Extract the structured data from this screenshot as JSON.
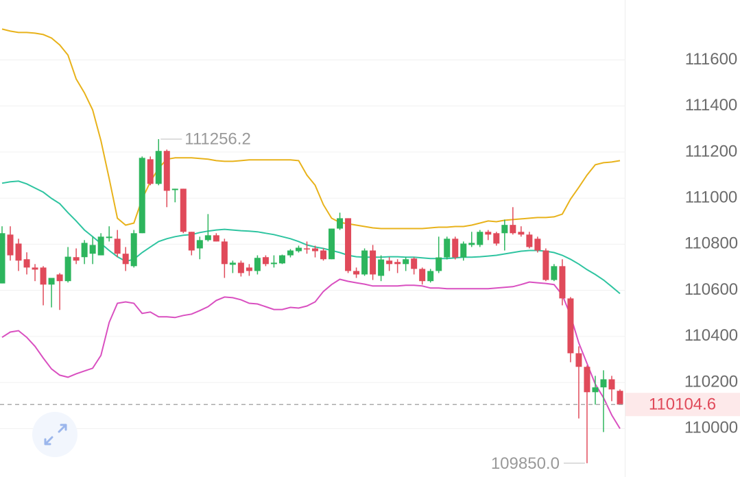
{
  "chart_data": {
    "type": "candlestick",
    "ylim": [
      109790,
      111860
    ],
    "yticks": [
      110000,
      110200,
      110400,
      110600,
      110800,
      111000,
      111200,
      111400,
      111600
    ],
    "grid": true,
    "up_color": "#2db55d",
    "down_color": "#e04a5a",
    "candles": {
      "open": [
        110630,
        110842,
        110803,
        110735,
        110699,
        110699,
        110625,
        110669,
        110640,
        110744,
        110744,
        110759,
        110752,
        110827,
        110824,
        110759,
        110705,
        110848,
        111169,
        111062,
        111205,
        111035,
        111041,
        110854,
        110782,
        110818,
        110839,
        110812,
        110711,
        110720,
        110699,
        110684,
        110744,
        110714,
        110717,
        110752,
        110770,
        110782,
        110782,
        110773,
        110735,
        110868,
        110913,
        110684,
        110669,
        110773,
        110663,
        110729,
        110723,
        110714,
        110738,
        110693,
        110640,
        110684,
        110743,
        110824,
        110743,
        110797,
        110797,
        110854,
        110848,
        110848,
        110884,
        110854,
        110842,
        110824,
        110773,
        110645,
        110705,
        110565,
        110327,
        110268,
        110158,
        110179,
        110214,
        110164
      ],
      "high": [
        110878,
        110878,
        110824,
        110765,
        110714,
        110705,
        110654,
        110675,
        110788,
        110782,
        110818,
        110833,
        110848,
        110878,
        110862,
        110788,
        110862,
        111181,
        111181,
        111256.2,
        111211,
        111041,
        111041,
        110854,
        110833,
        110931,
        110848,
        110824,
        110729,
        110729,
        110714,
        110752,
        110752,
        110752,
        110755,
        110779,
        110794,
        110812,
        110794,
        110782,
        110868,
        110937,
        110913,
        110699,
        110782,
        110797,
        110752,
        110744,
        110735,
        110744,
        110744,
        110699,
        110693,
        110833,
        110833,
        110833,
        110812,
        110854,
        110862,
        110862,
        110854,
        110907,
        110961,
        110878,
        110854,
        110833,
        110782,
        110714,
        110735,
        110571,
        110357,
        110274,
        110229,
        110253,
        110229,
        110170
      ],
      "low": [
        110630,
        110729,
        110684,
        110669,
        110640,
        110535,
        110526,
        110515,
        110634,
        110714,
        110714,
        110714,
        110752,
        110812,
        110744,
        110684,
        110699,
        110848,
        111056,
        111056,
        110961,
        110982,
        110848,
        110752,
        110735,
        110812,
        110812,
        110654,
        110675,
        110660,
        110663,
        110669,
        110705,
        110699,
        110714,
        110743,
        110764,
        110759,
        110743,
        110729,
        110735,
        110862,
        110675,
        110654,
        110663,
        110645,
        110640,
        110684,
        110675,
        110684,
        110669,
        110625,
        110634,
        110675,
        110734,
        110734,
        110729,
        110788,
        110788,
        110818,
        110794,
        110773,
        110842,
        110833,
        110782,
        110764,
        110640,
        110640,
        110535,
        110288,
        110044,
        109850,
        110104,
        109985,
        110119,
        110104
      ],
      "close": [
        110848,
        110752,
        110729,
        110699,
        110690,
        110625,
        110654,
        110640,
        110746,
        110729,
        110806,
        110797,
        110833,
        110833,
        110759,
        110714,
        110848,
        111175,
        111062,
        111205,
        111032,
        111041,
        110854,
        110773,
        110818,
        110839,
        110812,
        110714,
        110720,
        110675,
        110684,
        110741,
        110714,
        110720,
        110752,
        110773,
        110785,
        110779,
        110770,
        110735,
        110868,
        110913,
        110684,
        110669,
        110773,
        110669,
        110734,
        110714,
        110714,
        110735,
        110693,
        110640,
        110684,
        110743,
        110824,
        110743,
        110803,
        110806,
        110854,
        110842,
        110803,
        110884,
        110848,
        110842,
        110788,
        110773,
        110645,
        110705,
        110565,
        110327,
        110268,
        110158,
        110179,
        110214,
        110170,
        110104.6
      ]
    },
    "bands": [
      {
        "color": "#e8b21a",
        "values": [
          111734,
          111725,
          111719,
          111719,
          111716,
          111710,
          111695,
          111665,
          111621,
          111517,
          111457,
          111383,
          111249,
          111085,
          110913,
          110883,
          110892,
          110996,
          111071,
          111130,
          111169,
          111175,
          111175,
          111175,
          111172,
          111169,
          111163,
          111160,
          111160,
          111163,
          111166,
          111166,
          111166,
          111166,
          111166,
          111166,
          111163,
          111100,
          111056,
          110972,
          110913,
          110895,
          110889,
          110883,
          110877,
          110871,
          110868,
          110868,
          110868,
          110868,
          110868,
          110868,
          110871,
          110874,
          110874,
          110877,
          110877,
          110883,
          110892,
          110901,
          110898,
          110904,
          110907,
          110910,
          110913,
          110916,
          110916,
          110919,
          110931,
          110996,
          111047,
          111100,
          111145,
          111154,
          111157,
          111163
        ]
      },
      {
        "color": "#2ec4a0",
        "values": [
          111065,
          111071,
          111074,
          111062,
          111044,
          111026,
          110999,
          110976,
          110937,
          110901,
          110862,
          110833,
          110803,
          110773,
          110746,
          110726,
          110735,
          110764,
          110788,
          110812,
          110824,
          110833,
          110839,
          110842,
          110851,
          110857,
          110862,
          110865,
          110862,
          110859,
          110857,
          110854,
          110848,
          110842,
          110833,
          110824,
          110812,
          110797,
          110788,
          110782,
          110773,
          110764,
          110752,
          110746,
          110744,
          110744,
          110744,
          110746,
          110746,
          110744,
          110744,
          110741,
          110738,
          110738,
          110738,
          110741,
          110744,
          110744,
          110746,
          110749,
          110752,
          110758,
          110764,
          110770,
          110773,
          110773,
          110770,
          110764,
          110752,
          110735,
          110714,
          110690,
          110669,
          110645,
          110616,
          110586
        ]
      },
      {
        "color": "#d94fc0",
        "values": [
          110396,
          110419,
          110425,
          110396,
          110357,
          110306,
          110259,
          110232,
          110223,
          110238,
          110250,
          110262,
          110318,
          110461,
          110544,
          110550,
          110544,
          110500,
          110506,
          110485,
          110485,
          110482,
          110491,
          110497,
          110512,
          110529,
          110556,
          110571,
          110568,
          110559,
          110544,
          110541,
          110529,
          110517,
          110517,
          110526,
          110523,
          110532,
          110550,
          110595,
          110625,
          110648,
          110639,
          110633,
          110627,
          110619,
          110619,
          110619,
          110619,
          110622,
          110622,
          110619,
          110610,
          110610,
          110607,
          110607,
          110607,
          110607,
          110607,
          110607,
          110610,
          110613,
          110616,
          110625,
          110636,
          110633,
          110630,
          110625,
          110580,
          110491,
          110372,
          110283,
          110193,
          110134,
          110059,
          110000
        ]
      }
    ],
    "low_label": "109850.0"
  }
}
